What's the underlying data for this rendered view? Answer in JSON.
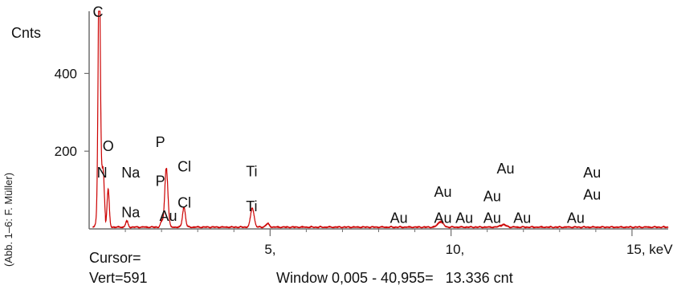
{
  "credit": "(Abb. 1–6: F. Müller)",
  "status": {
    "cursor": "Cursor=",
    "vert": "Vert=591",
    "window": "Window 0,005 - 40,955=   13.336 cnt"
  },
  "chart_data": {
    "type": "line",
    "ylabel": "Cnts",
    "xlim": [
      0.0,
      16.0
    ],
    "ylim": [
      0,
      560
    ],
    "x_ticks": [
      5,
      10,
      15
    ],
    "x_tick_labels": [
      "5,",
      "10,",
      "15, keV"
    ],
    "y_ticks": [
      200,
      400
    ],
    "y_tick_labels": [
      "200",
      "400"
    ],
    "grid": false,
    "line_color": "#cc0000",
    "spectrum": {
      "background": 4,
      "peaks": [
        {
          "x": 0.277,
          "y": 590
        },
        {
          "x": 0.392,
          "y": 80
        },
        {
          "x": 0.525,
          "y": 95
        },
        {
          "x": 1.04,
          "y": 15
        },
        {
          "x": 2.01,
          "y": 15
        },
        {
          "x": 2.12,
          "y": 110
        },
        {
          "x": 2.16,
          "y": 60
        },
        {
          "x": 2.62,
          "y": 50
        },
        {
          "x": 4.51,
          "y": 48
        },
        {
          "x": 4.93,
          "y": 8
        },
        {
          "x": 9.71,
          "y": 14
        },
        {
          "x": 11.44,
          "y": 6
        }
      ]
    },
    "peak_labels": [
      {
        "text": "C",
        "x": 0.277,
        "y": 560
      },
      {
        "text": "O",
        "x": 0.55,
        "y": 215
      },
      {
        "text": "N",
        "x": 0.39,
        "y": 147
      },
      {
        "text": "Na",
        "x": 1.07,
        "y": 147
      },
      {
        "text": "Na",
        "x": 1.07,
        "y": 44
      },
      {
        "text": "P",
        "x": 2.01,
        "y": 225
      },
      {
        "text": "P",
        "x": 2.01,
        "y": 125
      },
      {
        "text": "Au",
        "x": 2.12,
        "y": 35
      },
      {
        "text": "Cl",
        "x": 2.62,
        "y": 162
      },
      {
        "text": "Cl",
        "x": 2.62,
        "y": 69
      },
      {
        "text": "Ti",
        "x": 4.51,
        "y": 150
      },
      {
        "text": "Ti",
        "x": 4.51,
        "y": 60
      },
      {
        "text": "Au",
        "x": 8.49,
        "y": 30
      },
      {
        "text": "Au",
        "x": 9.71,
        "y": 97
      },
      {
        "text": "Au",
        "x": 9.71,
        "y": 30
      },
      {
        "text": "Au",
        "x": 10.3,
        "y": 30
      },
      {
        "text": "Au",
        "x": 11.44,
        "y": 157
      },
      {
        "text": "Au",
        "x": 11.07,
        "y": 86
      },
      {
        "text": "Au",
        "x": 11.07,
        "y": 30
      },
      {
        "text": "Au",
        "x": 11.9,
        "y": 30
      },
      {
        "text": "Au",
        "x": 13.38,
        "y": 30
      },
      {
        "text": "Au",
        "x": 13.83,
        "y": 147
      },
      {
        "text": "Au",
        "x": 13.83,
        "y": 90
      }
    ]
  }
}
